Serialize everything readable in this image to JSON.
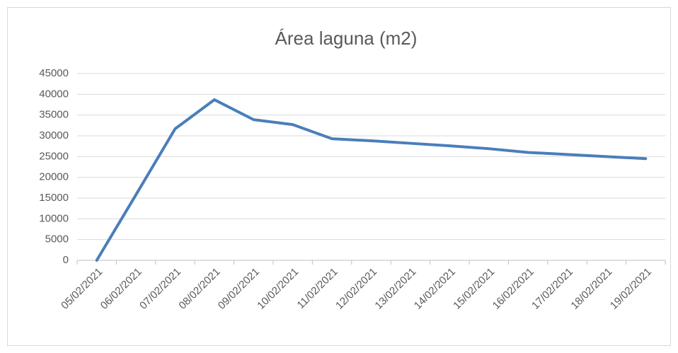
{
  "chart_data": {
    "type": "line",
    "title": "Área laguna (m2)",
    "categories": [
      "05/02/2021",
      "06/02/2021",
      "07/02/2021",
      "08/02/2021",
      "09/02/2021",
      "10/02/2021",
      "11/02/2021",
      "12/02/2021",
      "13/02/2021",
      "14/02/2021",
      "15/02/2021",
      "16/02/2021",
      "17/02/2021",
      "18/02/2021",
      "19/02/2021"
    ],
    "series": [
      {
        "name": "Área laguna (m2)",
        "color": "#4a7ebb",
        "values": [
          0,
          15800,
          31700,
          38700,
          33900,
          32700,
          29300,
          28800,
          28200,
          27600,
          26900,
          26000,
          25500,
          25000,
          24500
        ]
      }
    ],
    "ylim": [
      0,
      45000
    ],
    "yticks": [
      0,
      5000,
      10000,
      15000,
      20000,
      25000,
      30000,
      35000,
      40000,
      45000
    ],
    "grid": true
  }
}
